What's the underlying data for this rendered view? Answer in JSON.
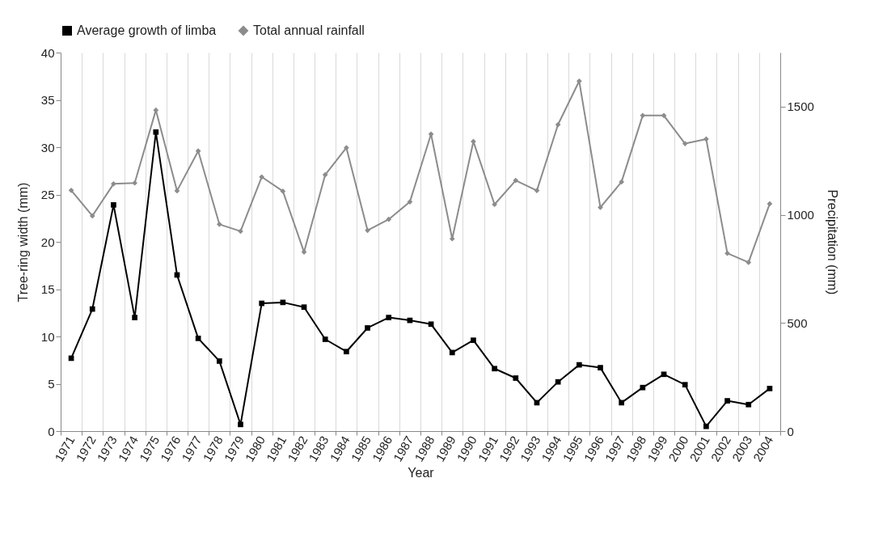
{
  "chart_data": {
    "type": "line",
    "xlabel": "Year",
    "ylabel": "Tree-ring width (mm)",
    "y2label": "Precipitation (mm)",
    "categories": [
      "1971",
      "1972",
      "1973",
      "1974",
      "1975",
      "1976",
      "1977",
      "1978",
      "1979",
      "1980",
      "1981",
      "1982",
      "1983",
      "1984",
      "1985",
      "1986",
      "1987",
      "1988",
      "1989",
      "1990",
      "1991",
      "1992",
      "1993",
      "1994",
      "1995",
      "1996",
      "1997",
      "1998",
      "1999",
      "2000",
      "2001",
      "2002",
      "2003",
      "2004"
    ],
    "series": [
      {
        "name": "Average growth of limba",
        "color": "#000000",
        "marker": "square",
        "values": [
          7.7,
          12.9,
          23.9,
          12.0,
          31.6,
          16.5,
          9.8,
          7.4,
          0.7,
          13.5,
          13.6,
          13.1,
          9.7,
          8.4,
          10.9,
          12.0,
          11.7,
          11.3,
          8.3,
          9.6,
          6.6,
          5.6,
          3.0,
          5.2,
          7.0,
          6.7,
          3.0,
          4.6,
          6.0,
          4.9,
          0.5,
          3.2,
          2.8,
          4.5
        ]
      },
      {
        "name": "Total annual rainfall",
        "color": "#8c8c8c",
        "marker": "diamond",
        "axis": "y2",
        "values": [
          1113,
          995,
          1143,
          1147,
          1484,
          1111,
          1295,
          956,
          924,
          1175,
          1109,
          828,
          1185,
          1310,
          928,
          979,
          1060,
          1373,
          889,
          1339,
          1048,
          1159,
          1112,
          1417,
          1618,
          1034,
          1152,
          1459,
          1459,
          1329,
          1350,
          822,
          780,
          1051
        ]
      }
    ],
    "ylim": [
      0,
      40
    ],
    "yticks": [
      0,
      5,
      10,
      15,
      20,
      25,
      30,
      35,
      40
    ],
    "y2lim": [
      0,
      1750
    ],
    "y2ticks": [
      0,
      500,
      1000,
      1500
    ],
    "grid": "x",
    "legend": "top",
    "line_style": "solid"
  }
}
